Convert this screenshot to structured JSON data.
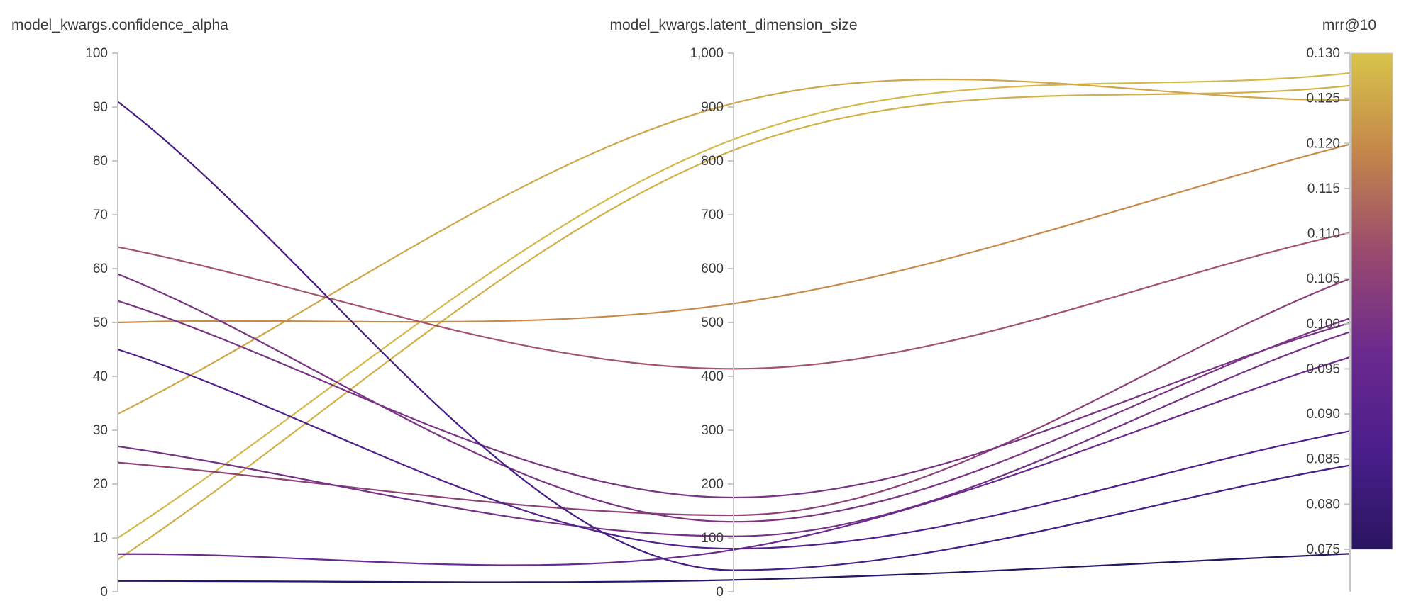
{
  "chart_data": {
    "type": "parallel_coordinates",
    "axes": [
      {
        "name": "model_kwargs.confidence_alpha",
        "title_display": "model_kwargs.confidence_alpha",
        "range": [
          0,
          100
        ],
        "ticks": [
          "0",
          "10",
          "20",
          "30",
          "40",
          "50",
          "60",
          "70",
          "80",
          "90",
          "100"
        ],
        "tick_values": [
          0,
          10,
          20,
          30,
          40,
          50,
          60,
          70,
          80,
          90,
          100
        ]
      },
      {
        "name": "model_kwargs.latent_dimension_size",
        "title_display": "model_kwargs.latent_dimension_size",
        "range": [
          0,
          1000
        ],
        "ticks": [
          "0",
          "100",
          "200",
          "300",
          "400",
          "500",
          "600",
          "700",
          "800",
          "900",
          "1,000"
        ],
        "tick_values": [
          0,
          100,
          200,
          300,
          400,
          500,
          600,
          700,
          800,
          900,
          1000
        ]
      },
      {
        "name": "mrr@10",
        "title_display": "mrr@10",
        "range": [
          0.072,
          0.13
        ],
        "ticks": [
          "0.075",
          "0.080",
          "0.085",
          "0.090",
          "0.095",
          "0.100",
          "0.105",
          "0.110",
          "0.115",
          "0.120",
          "0.125",
          "0.130"
        ],
        "tick_values": [
          0.075,
          0.08,
          0.085,
          0.09,
          0.095,
          0.1,
          0.105,
          0.11,
          0.115,
          0.12,
          0.125,
          0.13
        ]
      }
    ],
    "colorscale": {
      "range": [
        0.075,
        0.13
      ],
      "stops": [
        "#2a1560",
        "#4a1e8c",
        "#6c2a8e",
        "#9a4a6e",
        "#c4864a",
        "#d8c44a"
      ]
    },
    "runs": [
      {
        "values": [
          10,
          840,
          0.1278
        ]
      },
      {
        "values": [
          6,
          820,
          0.1264
        ]
      },
      {
        "values": [
          33,
          907,
          0.1248
        ]
      },
      {
        "values": [
          50,
          535,
          0.1199
        ]
      },
      {
        "values": [
          64,
          414,
          0.1101
        ]
      },
      {
        "values": [
          24,
          142,
          0.105
        ]
      },
      {
        "values": [
          59,
          130,
          0.1006
        ]
      },
      {
        "values": [
          54,
          175,
          0.1001
        ]
      },
      {
        "values": [
          27,
          103,
          0.0991
        ]
      },
      {
        "values": [
          7,
          78,
          0.0963
        ]
      },
      {
        "values": [
          45,
          80,
          0.0881
        ]
      },
      {
        "values": [
          91,
          40,
          0.0843
        ]
      },
      {
        "values": [
          2,
          22,
          0.0745
        ]
      }
    ]
  }
}
